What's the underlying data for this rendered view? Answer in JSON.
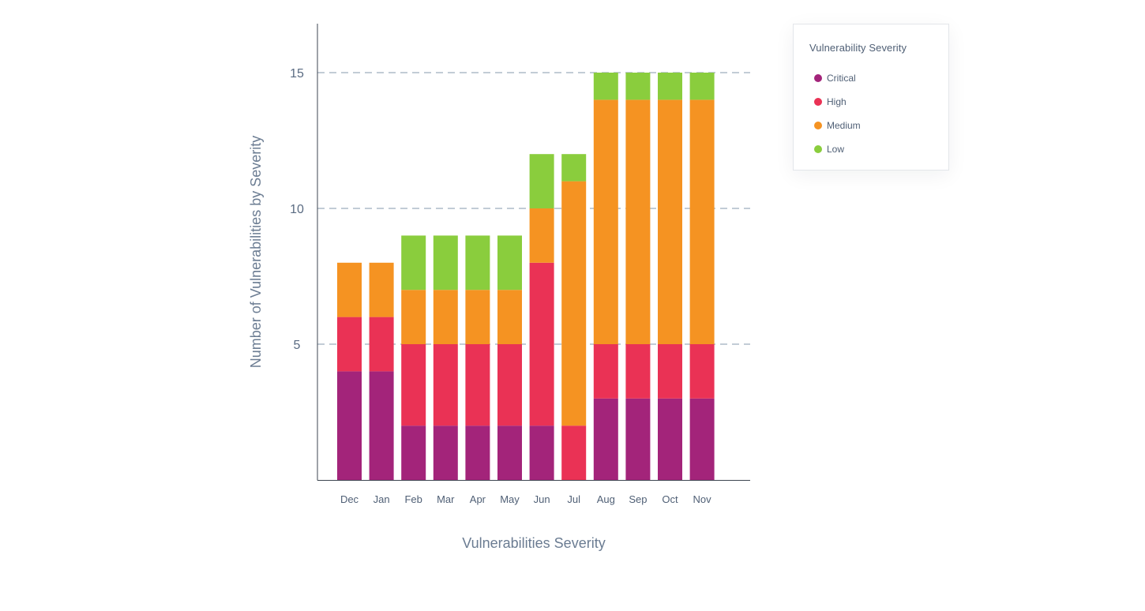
{
  "chart_data": {
    "type": "bar",
    "stacked": true,
    "title": "",
    "xlabel": "Vulnerabilities Severity",
    "ylabel": "Number of Vulnerabilities by Severity",
    "ylim": [
      0,
      16.8
    ],
    "yticks": [
      5,
      10,
      15
    ],
    "grid": "horizontal dashed",
    "legend_title": "Vulnerability Severity",
    "legend_position": "top-right",
    "categories": [
      "Dec",
      "Jan",
      "Feb",
      "Mar",
      "Apr",
      "May",
      "Jun",
      "Jul",
      "Aug",
      "Sep",
      "Oct",
      "Nov"
    ],
    "series": [
      {
        "name": "Critical",
        "color": "#a3247a",
        "values": [
          4,
          4,
          2,
          2,
          2,
          2,
          2,
          0,
          3,
          3,
          3,
          3
        ]
      },
      {
        "name": "High",
        "color": "#ea3255",
        "values": [
          2,
          2,
          3,
          3,
          3,
          3,
          6,
          2,
          2,
          2,
          2,
          2
        ]
      },
      {
        "name": "Medium",
        "color": "#f59322",
        "values": [
          2,
          2,
          2,
          2,
          2,
          2,
          2,
          9,
          9,
          9,
          9,
          9
        ]
      },
      {
        "name": "Low",
        "color": "#8acd3d",
        "values": [
          0,
          0,
          2,
          2,
          2,
          2,
          2,
          1,
          1,
          1,
          1,
          1
        ]
      }
    ]
  }
}
